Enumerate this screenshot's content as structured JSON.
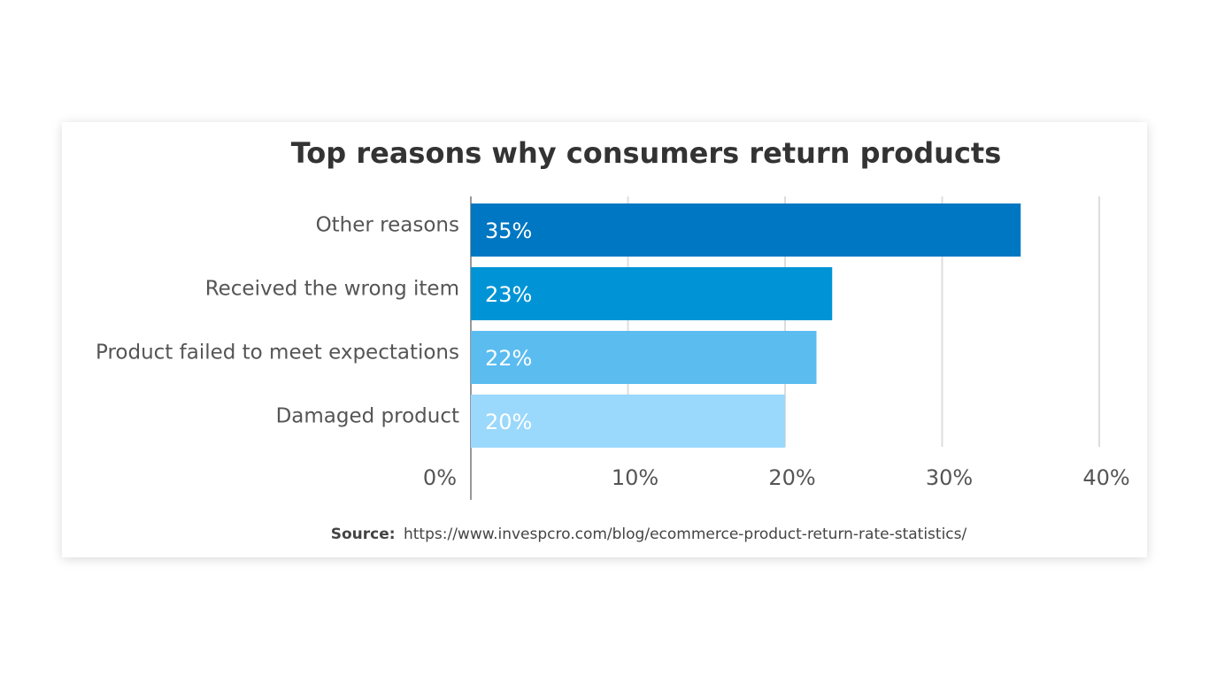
{
  "chart_data": {
    "type": "bar",
    "orientation": "horizontal",
    "title": "Top reasons why consumers return products",
    "categories": [
      "Other reasons",
      "Received the wrong item",
      "Product failed to meet expectations",
      "Damaged product"
    ],
    "values": [
      35,
      23,
      22,
      20
    ],
    "value_labels": [
      "35%",
      "23%",
      "22%",
      "20%"
    ],
    "colors": [
      "#0077c2",
      "#0094d6",
      "#5bbcf0",
      "#9ad8fc"
    ],
    "xlim": [
      0,
      40
    ],
    "xticks": [
      {
        "value": 0,
        "label": "0%"
      },
      {
        "value": 10,
        "label": "10%"
      },
      {
        "value": 20,
        "label": "20%"
      },
      {
        "value": 30,
        "label": "30%"
      },
      {
        "value": 40,
        "label": "40%"
      }
    ],
    "grid": true,
    "source_label": "Source:",
    "source_text": "https://www.invespcro.com/blog/ecommerce-product-return-rate-statistics/"
  }
}
